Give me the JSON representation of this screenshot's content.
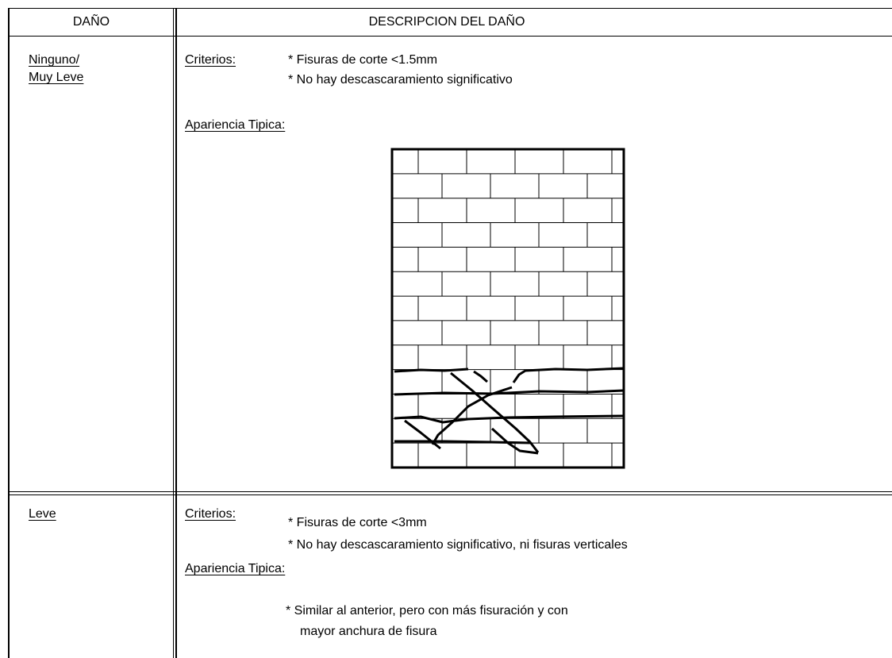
{
  "table": {
    "header": [
      "DAÑO",
      "DESCRIPCION DEL DAÑO"
    ],
    "rows": [
      {
        "damage": [
          "Ninguno/",
          "Muy Leve"
        ],
        "criteria_label": "Criterios:",
        "criteria": [
          "* Fisuras de corte <1.5mm",
          "* No hay descascaramiento significativo"
        ],
        "appearance_label": "Apariencia Tipica:"
      },
      {
        "damage": [
          "Leve"
        ],
        "criteria_label": "Criterios:",
        "criteria": [
          "* Fisuras de corte <3mm",
          "* No hay descascaramiento significativo, ni fisuras verticales"
        ],
        "appearance_label": "Apariencia Tipica:",
        "appearance": [
          "* Similar al anterior, pero con más fisuración y con",
          "mayor anchura de fisura"
        ]
      }
    ]
  }
}
